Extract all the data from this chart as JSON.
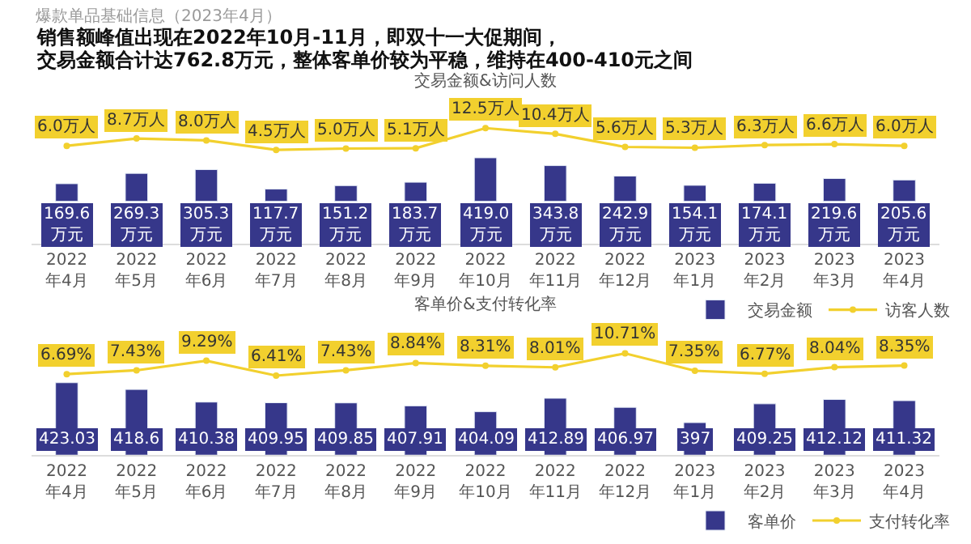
{
  "chart_data": [
    {
      "type": "bar",
      "title": "交易金额&访问人数",
      "annotations": [
        "爆款单品基础信息（2023年4月）",
        "销售额峰值出现在2022年10月-11月，即双十一大促期间，",
        "交易金额合计达762.8万元，整体客单价较为平稳，维持在400-410元之间"
      ],
      "categories": [
        "2022年4月",
        "2022年5月",
        "2022年6月",
        "2022年7月",
        "2022年8月",
        "2022年9月",
        "2022年10月",
        "2022年11月",
        "2022年12月",
        "2023年1月",
        "2023年2月",
        "2023年3月",
        "2023年4月"
      ],
      "series": [
        {
          "name": "交易金额",
          "color": "#36378a",
          "values": [
            169.6,
            269.3,
            305.3,
            117.7,
            151.2,
            183.7,
            419.0,
            343.8,
            242.9,
            154.1,
            174.1,
            219.6,
            205.6
          ],
          "value_labels": [
            "169.6万元",
            "269.3万元",
            "305.3万元",
            "117.7万元",
            "151.2万元",
            "183.7万元",
            "419.0万元",
            "343.8万元",
            "242.9万元",
            "154.1万元",
            "174.1万元",
            "219.6万元",
            "205.6万元"
          ]
        },
        {
          "name": "访客人数",
          "type": "line",
          "axis": "y2",
          "color": "#f2d02e",
          "values": [
            6.0,
            8.7,
            8.0,
            4.5,
            5.0,
            5.1,
            12.5,
            10.4,
            5.6,
            5.3,
            6.3,
            6.6,
            6.0
          ],
          "value_labels": [
            "6.0万人",
            "8.7万人",
            "8.0万人",
            "4.5万人",
            "5.0万人",
            "5.1万人",
            "12.5万人",
            "10.4万人",
            "5.6万人",
            "5.3万人",
            "6.3万人",
            "6.6万人",
            "6.0万人"
          ]
        }
      ],
      "ylim": [
        -404,
        943
      ],
      "y2lim": [
        -29.8,
        21.6
      ],
      "tick_labels": "x",
      "legend": "bottom right",
      "marker": "circle",
      "line_style": "solid"
    },
    {
      "type": "bar",
      "title": "客单价&支付转化率",
      "categories": [
        "2022年4月",
        "2022年5月",
        "2022年6月",
        "2022年7月",
        "2022年8月",
        "2022年9月",
        "2022年10月",
        "2022年11月",
        "2022年12月",
        "2023年1月",
        "2023年2月",
        "2023年3月",
        "2023年4月"
      ],
      "series": [
        {
          "name": "客单价",
          "color": "#36378a",
          "values": [
            423.03,
            418.6,
            410.38,
            409.95,
            409.85,
            407.91,
            404.09,
            412.89,
            406.97,
            397,
            409.25,
            412.12,
            411.32
          ],
          "value_labels": [
            "423.03",
            "418.6",
            "410.38",
            "409.95",
            "409.85",
            "407.91",
            "404.09",
            "412.89",
            "406.97",
            "397",
            "409.25",
            "412.12",
            "411.32"
          ]
        },
        {
          "name": "支付转化率",
          "type": "line",
          "axis": "y2",
          "color": "#f2d02e",
          "values": [
            6.69,
            7.43,
            9.29,
            6.41,
            7.43,
            8.84,
            8.31,
            8.01,
            10.71,
            7.35,
            6.77,
            8.04,
            8.35
          ],
          "value_labels": [
            "6.69%",
            "7.43%",
            "9.29%",
            "6.41%",
            "7.43%",
            "8.84%",
            "8.31%",
            "8.01%",
            "10.71%",
            "7.35%",
            "6.77%",
            "8.04%",
            "8.35%"
          ]
        }
      ],
      "ylim": [
        376,
        459
      ],
      "y2lim": [
        -8.9,
        15.7
      ],
      "tick_labels": "x",
      "legend": "bottom right",
      "marker": "circle",
      "line_style": "solid"
    }
  ]
}
